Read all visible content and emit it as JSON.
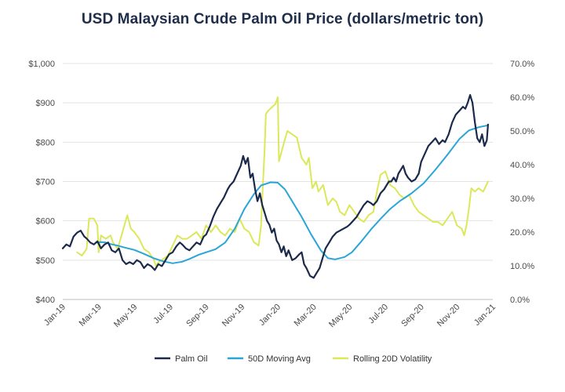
{
  "chart_data": {
    "type": "line",
    "title": "USD Malaysian Crude Palm Oil Price (dollars/metric ton)",
    "x_ticks": [
      "Jan-19",
      "Mar-19",
      "May-19",
      "Jul-19",
      "Sep-19",
      "Nov-19",
      "Jan-20",
      "Mar-20",
      "May-20",
      "Jul-20",
      "Sep-20",
      "Nov-20",
      "Jan-21"
    ],
    "y_left": {
      "range": [
        400,
        1000
      ],
      "ticks": [
        "$400",
        "$500",
        "$600",
        "$700",
        "$800",
        "$900",
        "$1,000"
      ]
    },
    "y_right": {
      "range": [
        0,
        70
      ],
      "ticks": [
        "0.0%",
        "10.0%",
        "20.0%",
        "30.0%",
        "40.0%",
        "50.0%",
        "60.0%",
        "70.0%"
      ]
    },
    "grid": true,
    "legend_position": "bottom",
    "series": [
      {
        "name": "Palm Oil",
        "axis": "left",
        "color": "#1b2a4a",
        "points": [
          [
            0,
            530
          ],
          [
            0.15,
            540
          ],
          [
            0.3,
            535
          ],
          [
            0.45,
            560
          ],
          [
            0.6,
            570
          ],
          [
            0.75,
            575
          ],
          [
            0.9,
            560
          ],
          [
            1,
            555
          ],
          [
            1.15,
            545
          ],
          [
            1.3,
            540
          ],
          [
            1.45,
            548
          ],
          [
            1.6,
            530
          ],
          [
            1.75,
            540
          ],
          [
            1.9,
            545
          ],
          [
            2.05,
            525
          ],
          [
            2.2,
            520
          ],
          [
            2.35,
            530
          ],
          [
            2.5,
            500
          ],
          [
            2.65,
            490
          ],
          [
            2.8,
            495
          ],
          [
            2.95,
            490
          ],
          [
            3.1,
            500
          ],
          [
            3.25,
            495
          ],
          [
            3.4,
            480
          ],
          [
            3.55,
            490
          ],
          [
            3.7,
            485
          ],
          [
            3.85,
            475
          ],
          [
            4,
            490
          ],
          [
            4.15,
            485
          ],
          [
            4.3,
            500
          ],
          [
            4.45,
            515
          ],
          [
            4.6,
            520
          ],
          [
            4.75,
            535
          ],
          [
            4.9,
            545
          ],
          [
            5,
            540
          ],
          [
            5.15,
            530
          ],
          [
            5.3,
            525
          ],
          [
            5.45,
            535
          ],
          [
            5.6,
            545
          ],
          [
            5.75,
            540
          ],
          [
            5.9,
            560
          ],
          [
            6,
            565
          ],
          [
            6.15,
            585
          ],
          [
            6.3,
            610
          ],
          [
            6.45,
            630
          ],
          [
            6.6,
            645
          ],
          [
            6.75,
            660
          ],
          [
            6.9,
            680
          ],
          [
            7,
            690
          ],
          [
            7.15,
            700
          ],
          [
            7.3,
            720
          ],
          [
            7.45,
            740
          ],
          [
            7.55,
            765
          ],
          [
            7.65,
            745
          ],
          [
            7.75,
            760
          ],
          [
            7.85,
            710
          ],
          [
            7.95,
            720
          ],
          [
            8.05,
            680
          ],
          [
            8.15,
            650
          ],
          [
            8.25,
            670
          ],
          [
            8.35,
            640
          ],
          [
            8.45,
            620
          ],
          [
            8.55,
            600
          ],
          [
            8.65,
            590
          ],
          [
            8.75,
            570
          ],
          [
            8.85,
            580
          ],
          [
            8.95,
            550
          ],
          [
            9.05,
            540
          ],
          [
            9.15,
            520
          ],
          [
            9.25,
            535
          ],
          [
            9.35,
            510
          ],
          [
            9.45,
            525
          ],
          [
            9.6,
            500
          ],
          [
            9.75,
            505
          ],
          [
            9.9,
            515
          ],
          [
            10,
            520
          ],
          [
            10.1,
            490
          ],
          [
            10.2,
            480
          ],
          [
            10.35,
            460
          ],
          [
            10.5,
            455
          ],
          [
            10.6,
            465
          ],
          [
            10.75,
            480
          ],
          [
            10.9,
            510
          ],
          [
            11,
            530
          ],
          [
            11.15,
            545
          ],
          [
            11.3,
            560
          ],
          [
            11.45,
            570
          ],
          [
            11.6,
            575
          ],
          [
            11.75,
            580
          ],
          [
            11.9,
            585
          ],
          [
            12,
            590
          ],
          [
            12.15,
            600
          ],
          [
            12.3,
            610
          ],
          [
            12.45,
            625
          ],
          [
            12.6,
            640
          ],
          [
            12.75,
            650
          ],
          [
            12.9,
            645
          ],
          [
            13,
            640
          ],
          [
            13.15,
            650
          ],
          [
            13.3,
            670
          ],
          [
            13.45,
            680
          ],
          [
            13.55,
            690
          ],
          [
            13.65,
            700
          ],
          [
            13.75,
            700
          ],
          [
            13.85,
            710
          ],
          [
            13.95,
            700
          ],
          [
            14.05,
            720
          ],
          [
            14.15,
            730
          ],
          [
            14.25,
            740
          ],
          [
            14.35,
            720
          ],
          [
            14.45,
            710
          ],
          [
            14.6,
            700
          ],
          [
            14.75,
            705
          ],
          [
            14.9,
            720
          ],
          [
            15,
            750
          ],
          [
            15.15,
            770
          ],
          [
            15.3,
            790
          ],
          [
            15.45,
            800
          ],
          [
            15.6,
            810
          ],
          [
            15.75,
            795
          ],
          [
            15.9,
            805
          ],
          [
            16,
            800
          ],
          [
            16.15,
            820
          ],
          [
            16.3,
            850
          ],
          [
            16.45,
            870
          ],
          [
            16.6,
            880
          ],
          [
            16.75,
            890
          ],
          [
            16.85,
            885
          ],
          [
            16.95,
            900
          ],
          [
            17.05,
            920
          ],
          [
            17.15,
            900
          ],
          [
            17.25,
            850
          ],
          [
            17.35,
            810
          ],
          [
            17.45,
            800
          ],
          [
            17.55,
            820
          ],
          [
            17.65,
            790
          ],
          [
            17.75,
            805
          ],
          [
            17.8,
            845
          ]
        ]
      },
      {
        "name": "50D Moving Avg",
        "axis": "left",
        "color": "#2aa6d6",
        "points": [
          [
            1.4,
            545
          ],
          [
            1.6,
            546
          ],
          [
            1.8,
            545
          ],
          [
            2,
            541
          ],
          [
            2.3,
            537
          ],
          [
            2.6,
            532
          ],
          [
            3,
            526
          ],
          [
            3.4,
            516
          ],
          [
            3.8,
            505
          ],
          [
            4.2,
            497
          ],
          [
            4.6,
            492
          ],
          [
            5,
            496
          ],
          [
            5.3,
            503
          ],
          [
            5.7,
            514
          ],
          [
            6,
            520
          ],
          [
            6.4,
            528
          ],
          [
            6.8,
            545
          ],
          [
            7.2,
            580
          ],
          [
            7.6,
            630
          ],
          [
            8,
            668
          ],
          [
            8.3,
            690
          ],
          [
            8.7,
            698
          ],
          [
            9,
            697
          ],
          [
            9.3,
            680
          ],
          [
            9.6,
            650
          ],
          [
            10,
            610
          ],
          [
            10.4,
            565
          ],
          [
            10.8,
            525
          ],
          [
            11.1,
            505
          ],
          [
            11.4,
            502
          ],
          [
            11.8,
            508
          ],
          [
            12.1,
            520
          ],
          [
            12.5,
            548
          ],
          [
            12.9,
            578
          ],
          [
            13.3,
            605
          ],
          [
            13.7,
            630
          ],
          [
            14.1,
            650
          ],
          [
            14.6,
            670
          ],
          [
            15.1,
            695
          ],
          [
            15.6,
            730
          ],
          [
            16.1,
            768
          ],
          [
            16.6,
            808
          ],
          [
            17,
            830
          ],
          [
            17.4,
            838
          ],
          [
            17.8,
            843
          ]
        ]
      },
      {
        "name": "Rolling 20D Volatility",
        "axis": "right",
        "color": "#dce85a",
        "points": [
          [
            0.6,
            14
          ],
          [
            0.8,
            13
          ],
          [
            1,
            15
          ],
          [
            1.1,
            24
          ],
          [
            1.3,
            24
          ],
          [
            1.45,
            22
          ],
          [
            1.5,
            14
          ],
          [
            1.6,
            19
          ],
          [
            1.8,
            18
          ],
          [
            2,
            19
          ],
          [
            2.1,
            17
          ],
          [
            2.3,
            15
          ],
          [
            2.5,
            20
          ],
          [
            2.7,
            25
          ],
          [
            2.85,
            21
          ],
          [
            3,
            20
          ],
          [
            3.2,
            18
          ],
          [
            3.4,
            15
          ],
          [
            3.6,
            14
          ],
          [
            3.8,
            12
          ],
          [
            3.9,
            10
          ],
          [
            4,
            11
          ],
          [
            4.2,
            12
          ],
          [
            4.4,
            13
          ],
          [
            4.6,
            16
          ],
          [
            4.8,
            19
          ],
          [
            5,
            18
          ],
          [
            5.2,
            18
          ],
          [
            5.4,
            19
          ],
          [
            5.6,
            20
          ],
          [
            5.8,
            18
          ],
          [
            6,
            22
          ],
          [
            6.2,
            20
          ],
          [
            6.4,
            22
          ],
          [
            6.6,
            20
          ],
          [
            6.8,
            19
          ],
          [
            7,
            21
          ],
          [
            7.2,
            20
          ],
          [
            7.4,
            24
          ],
          [
            7.6,
            21
          ],
          [
            7.8,
            20
          ],
          [
            8,
            17
          ],
          [
            8.2,
            16
          ],
          [
            8.3,
            22
          ],
          [
            8.35,
            30
          ],
          [
            8.45,
            45
          ],
          [
            8.5,
            55
          ],
          [
            8.6,
            56
          ],
          [
            8.75,
            57
          ],
          [
            8.9,
            58
          ],
          [
            9,
            60
          ],
          [
            9.05,
            41
          ],
          [
            9.2,
            45
          ],
          [
            9.4,
            50
          ],
          [
            9.6,
            49
          ],
          [
            9.8,
            48
          ],
          [
            10,
            42
          ],
          [
            10.2,
            40
          ],
          [
            10.3,
            42
          ],
          [
            10.45,
            33
          ],
          [
            10.6,
            35
          ],
          [
            10.7,
            32
          ],
          [
            10.9,
            34
          ],
          [
            11.1,
            28
          ],
          [
            11.3,
            30
          ],
          [
            11.45,
            29
          ],
          [
            11.6,
            26
          ],
          [
            11.8,
            25
          ],
          [
            12,
            28
          ],
          [
            12.2,
            26
          ],
          [
            12.4,
            24
          ],
          [
            12.6,
            23
          ],
          [
            12.8,
            25
          ],
          [
            13,
            26
          ],
          [
            13.15,
            32
          ],
          [
            13.3,
            37
          ],
          [
            13.5,
            38
          ],
          [
            13.7,
            34
          ],
          [
            13.9,
            33
          ],
          [
            14.1,
            31
          ],
          [
            14.3,
            30
          ],
          [
            14.5,
            31
          ],
          [
            14.7,
            28
          ],
          [
            14.9,
            26
          ],
          [
            15.1,
            25
          ],
          [
            15.3,
            24
          ],
          [
            15.5,
            23
          ],
          [
            15.7,
            23
          ],
          [
            15.9,
            22
          ],
          [
            16.1,
            24
          ],
          [
            16.3,
            26
          ],
          [
            16.5,
            22
          ],
          [
            16.7,
            21
          ],
          [
            16.8,
            19
          ],
          [
            16.9,
            22
          ],
          [
            17,
            27
          ],
          [
            17.1,
            33
          ],
          [
            17.25,
            32
          ],
          [
            17.4,
            33
          ],
          [
            17.6,
            32
          ],
          [
            17.8,
            35
          ]
        ]
      }
    ]
  }
}
